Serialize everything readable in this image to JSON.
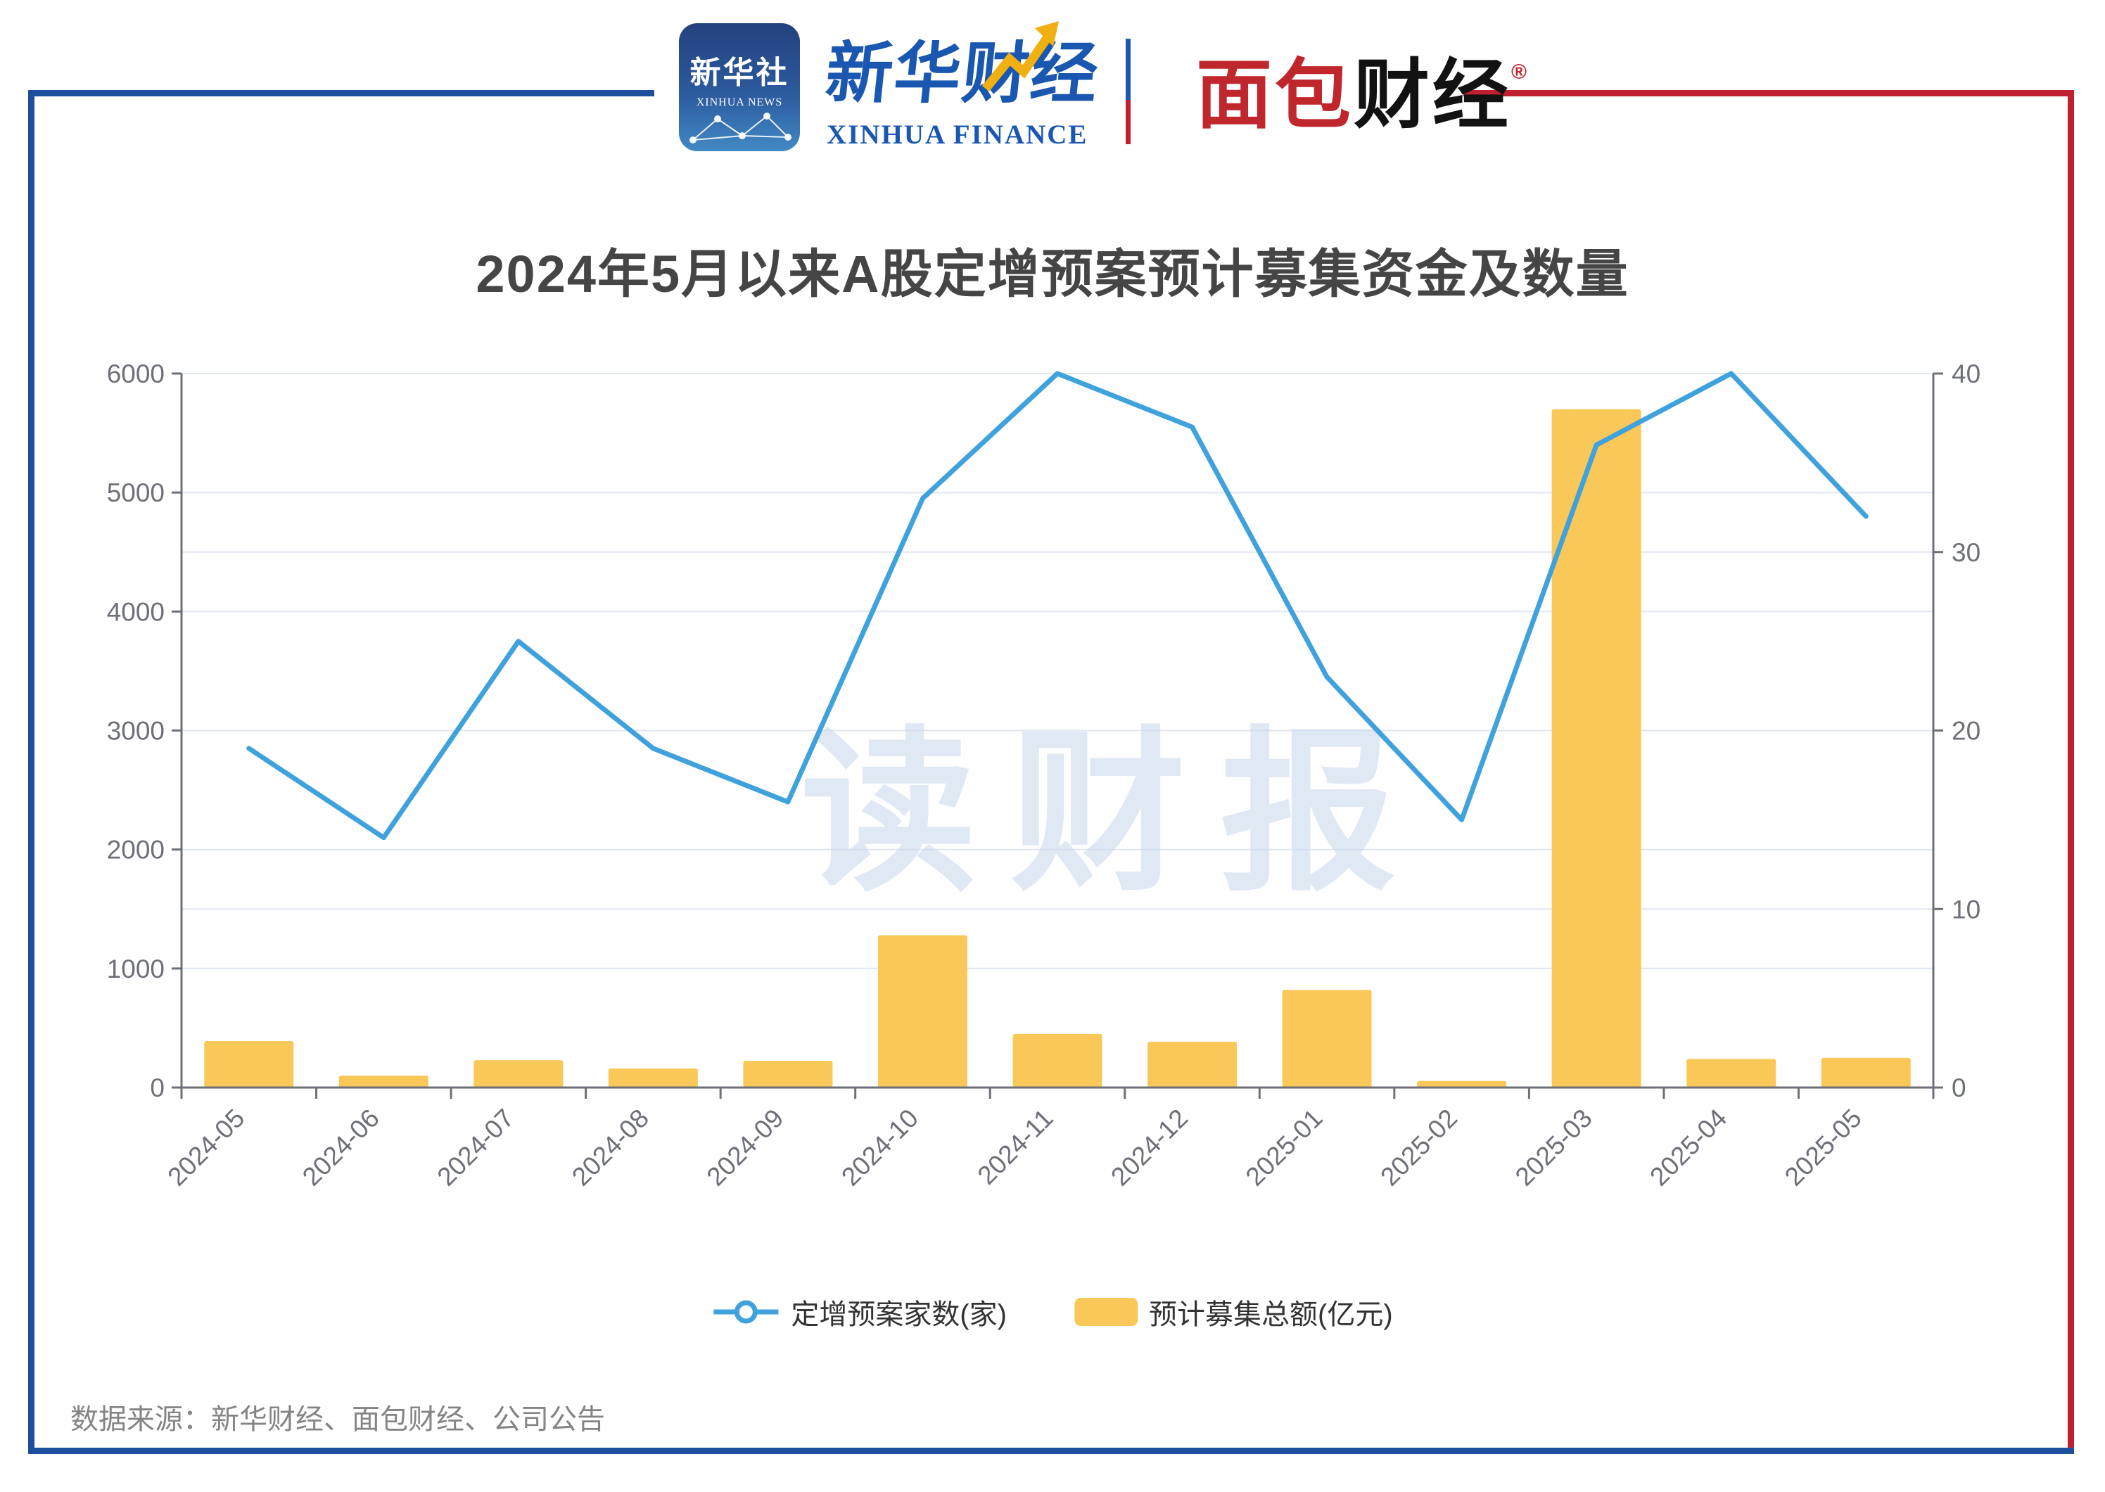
{
  "header": {
    "xinhua_icon": {
      "line1": "新华社",
      "line2": "XINHUA NEWS"
    },
    "xinhua_finance": {
      "cn": "新华财经",
      "en": "XINHUA FINANCE"
    },
    "bread_finance": {
      "cn_red": "面包",
      "cn_black": "财经",
      "reg": "®"
    }
  },
  "title": "2024年5月以来A股定增预案预计募集资金及数量",
  "watermark": "读财报",
  "source": "数据来源：新华财经、面包财经、公司公告",
  "legend": {
    "line_label": "定增预案家数(家)",
    "bar_label": "预计募集总额(亿元)"
  },
  "colors": {
    "line": "#3fa2dc",
    "bar": "#fac858",
    "grid": "#e0e6f1",
    "axis": "#6e7079",
    "label": "#6e7079",
    "watermark": "#ccd9ee",
    "frame_blue": "#1e4f9c",
    "frame_red": "#c01f2f"
  },
  "chart_data": {
    "type": "bar+line dual-axis combo",
    "categories": [
      "2024-05",
      "2024-06",
      "2024-07",
      "2024-08",
      "2024-09",
      "2024-10",
      "2024-11",
      "2024-12",
      "2025-01",
      "2025-02",
      "2025-03",
      "2025-04",
      "2025-05"
    ],
    "series": [
      {
        "name": "定增预案家数(家)",
        "type": "line",
        "axis": "right",
        "values": [
          19,
          14,
          25,
          19,
          16,
          33,
          40,
          37,
          23,
          15,
          36,
          40,
          32
        ]
      },
      {
        "name": "预计募集总额(亿元)",
        "type": "bar",
        "axis": "left",
        "values": [
          390,
          100,
          230,
          160,
          225,
          1280,
          450,
          385,
          820,
          55,
          5700,
          240,
          250
        ]
      }
    ],
    "left_axis": {
      "min": 0,
      "max": 6000,
      "ticks": [
        0,
        1000,
        2000,
        3000,
        4000,
        5000,
        6000
      ]
    },
    "right_axis": {
      "min": 0,
      "max": 40,
      "ticks": [
        0,
        10,
        20,
        30,
        40
      ]
    },
    "grid": "horizontal gridlines from both axes",
    "legend_position": "bottom center"
  }
}
